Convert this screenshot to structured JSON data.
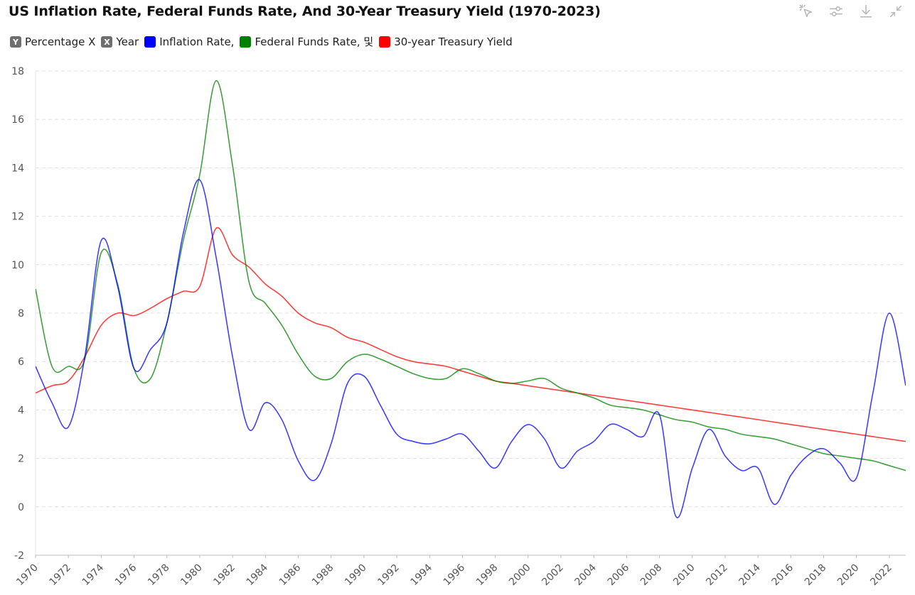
{
  "chart_data": {
    "type": "line",
    "title": "US Inflation Rate, Federal Funds Rate, And 30-Year Treasury Yield (1970-2023)",
    "xlabel": "Year",
    "ylabel": "Percentage",
    "ylim": [
      -2,
      18
    ],
    "yticks": [
      -2,
      0,
      2,
      4,
      6,
      8,
      10,
      12,
      14,
      16,
      18
    ],
    "grid": "horizontal-dashed",
    "legend_position": "top-left",
    "x": [
      1970,
      1971,
      1972,
      1973,
      1974,
      1975,
      1976,
      1977,
      1978,
      1979,
      1980,
      1981,
      1982,
      1983,
      1984,
      1985,
      1986,
      1987,
      1988,
      1989,
      1990,
      1991,
      1992,
      1993,
      1994,
      1995,
      1996,
      1997,
      1998,
      1999,
      2000,
      2001,
      2002,
      2003,
      2004,
      2005,
      2006,
      2007,
      2008,
      2009,
      2010,
      2011,
      2012,
      2013,
      2014,
      2015,
      2016,
      2017,
      2018,
      2019,
      2020,
      2021,
      2022,
      2023
    ],
    "xtick_labels": [
      "1970",
      "1972",
      "1974",
      "1976",
      "1978",
      "1980",
      "1982",
      "1984",
      "1986",
      "1988",
      "1990",
      "1992",
      "1994",
      "1996",
      "1998",
      "2000",
      "2002",
      "2004",
      "2006",
      "2008",
      "2010",
      "2012",
      "2014",
      "2016",
      "2018",
      "2020",
      "2022"
    ],
    "series": [
      {
        "name": "Inflation Rate,",
        "color": "#0000ff",
        "values": [
          5.8,
          4.3,
          3.3,
          6.2,
          11.0,
          9.1,
          5.7,
          6.5,
          7.6,
          11.3,
          13.5,
          10.3,
          6.2,
          3.2,
          4.3,
          3.6,
          1.9,
          1.1,
          2.6,
          5.1,
          5.4,
          4.2,
          3.0,
          2.7,
          2.6,
          2.8,
          3.0,
          2.3,
          1.6,
          2.7,
          3.4,
          2.8,
          1.6,
          2.3,
          2.7,
          3.4,
          3.2,
          2.9,
          3.8,
          -0.4,
          1.6,
          3.2,
          2.1,
          1.5,
          1.6,
          0.1,
          1.3,
          2.1,
          2.4,
          1.8,
          1.2,
          4.7,
          8.0,
          5.0
        ]
      },
      {
        "name": "Federal Funds Rate, 및",
        "color": "#008000",
        "values": [
          9.0,
          5.8,
          5.8,
          6.1,
          10.5,
          9.2,
          5.7,
          5.3,
          7.6,
          11.0,
          13.7,
          17.6,
          14.1,
          9.3,
          8.4,
          7.5,
          6.3,
          5.4,
          5.3,
          6.0,
          6.3,
          6.1,
          5.8,
          5.5,
          5.3,
          5.3,
          5.7,
          5.5,
          5.2,
          5.1,
          5.2,
          5.3,
          4.9,
          4.7,
          4.5,
          4.2,
          4.1,
          4.0,
          3.8,
          3.6,
          3.5,
          3.3,
          3.2,
          3.0,
          2.9,
          2.8,
          2.6,
          2.4,
          2.2,
          2.1,
          2.0,
          1.9,
          1.7,
          1.5
        ]
      },
      {
        "name": "30-year Treasury Yield",
        "color": "#ff0000",
        "values": [
          4.7,
          5.0,
          5.2,
          6.2,
          7.5,
          8.0,
          7.9,
          8.2,
          8.6,
          8.9,
          9.1,
          11.5,
          10.4,
          9.9,
          9.2,
          8.7,
          8.0,
          7.6,
          7.4,
          7.0,
          6.8,
          6.5,
          6.2,
          6.0,
          5.9,
          5.8,
          5.6,
          5.4,
          5.2,
          5.1,
          5.0,
          4.9,
          4.8,
          4.7,
          4.6,
          4.5,
          4.4,
          4.3,
          4.2,
          4.1,
          4.0,
          3.9,
          3.8,
          3.7,
          3.6,
          3.5,
          3.4,
          3.3,
          3.2,
          3.1,
          3.0,
          2.9,
          2.8,
          2.7
        ]
      }
    ]
  },
  "legend": {
    "axis_y": {
      "badge": "Y",
      "label": "Percentage X"
    },
    "axis_x": {
      "badge": "X",
      "label": "Year"
    },
    "items": [
      {
        "label": "Inflation Rate,",
        "color": "#0000ff"
      },
      {
        "label": "Federal Funds Rate, 및",
        "color": "#008000"
      },
      {
        "label": "30-year Treasury Yield",
        "color": "#ff0000"
      }
    ],
    "axis_badge_color": "#6e6e6e"
  },
  "toolbar": {
    "icons": [
      "select-icon",
      "settings-sliders-icon",
      "download-icon",
      "collapse-icon"
    ],
    "icon_color": "#b5b5b5"
  }
}
